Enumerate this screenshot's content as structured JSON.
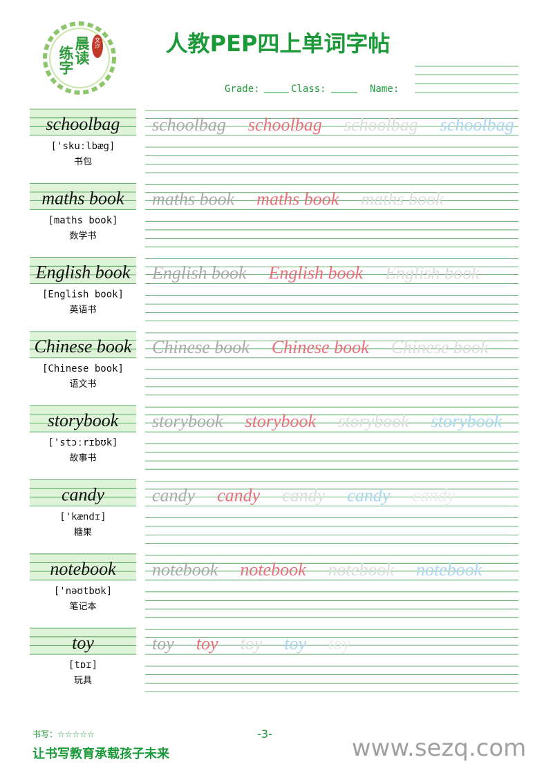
{
  "logo": {
    "main": [
      "晨读",
      "练字"
    ],
    "badge": "文沙"
  },
  "header": {
    "title": "人教PEP四上单词字帖",
    "grade": "Grade:",
    "class": "Class:",
    "name": "Name:"
  },
  "words": [
    {
      "word": "schoolbag",
      "phonetic": "['skuːlbæg]",
      "meaning": "书包"
    },
    {
      "word": "maths book",
      "phonetic": "[maths book]",
      "meaning": "数学书"
    },
    {
      "word": "English book",
      "phonetic": "[English book]",
      "meaning": "英语书"
    },
    {
      "word": "Chinese book",
      "phonetic": "[Chinese book]",
      "meaning": "语文书"
    },
    {
      "word": "storybook",
      "phonetic": "['stɔːrɪbʊk]",
      "meaning": "故事书"
    },
    {
      "word": "candy",
      "phonetic": "['kændɪ]",
      "meaning": "糖果"
    },
    {
      "word": "notebook",
      "phonetic": "['nəʊtbʊk]",
      "meaning": "笔记本"
    },
    {
      "word": "toy",
      "phonetic": "[tɒɪ]",
      "meaning": "玩具"
    }
  ],
  "footer": {
    "rating": "书写：☆☆☆☆☆",
    "page": "-3-",
    "slogan": "让书写教育承载孩子未来",
    "website": "www.sezq.com"
  }
}
